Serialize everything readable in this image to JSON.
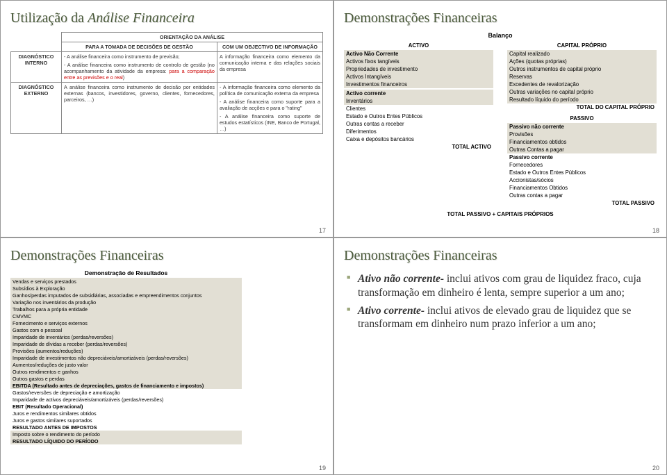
{
  "colors": {
    "title": "#4a5a3a",
    "shade": "#e2dfd4",
    "red": "#c00",
    "bullet": "#9aa57a"
  },
  "slide17": {
    "title_plain": "Utilização da ",
    "title_ital": "Análise Financeira",
    "page": "17",
    "table": {
      "col_header": "ORIENTAÇÃO DA ANÁLISE",
      "h1": "PARA A TOMADA DE DECISÕES DE GESTÃO",
      "h2": "COM UM OBJECTIVO DE INFORMAÇÃO",
      "r1label": "DIAGNÓSTICO INTERNO",
      "r1c1a": "- A análise financeira como instrumento de previsão;",
      "r1c1b_pre": "- A análise financeira como instrumento de controlo de gestão (no acompanhamento da atividade da empresa: ",
      "r1c1b_red": "para a comparação entre as previsões e o real",
      "r1c1b_post": ")",
      "r1c2": "A informação financeira como elemento da comunicação interna e das relações sociais da empresa",
      "r2label": "DIAGNÓSTICO EXTERNO",
      "r2c1": "A análise financeira como instrumento de decisão por entidades externas (bancos, investidores, governo, clientes, fornecedores, parceiros, …)",
      "r2c2a": "- A informação financeira como elemento da política de comunicação externa da empresa",
      "r2c2b": "- A análise financeira como suporte para a avaliação de acções e para o \"rating\"",
      "r2c2c": "- A análise financeira como suporte de estudos estatísticos (INE, Banco de Portugal, …)"
    }
  },
  "slide18": {
    "title": "Demonstrações Financeiras",
    "page": "18",
    "bal_title": "Balanço",
    "activo_head": "ACTIVO",
    "capital_head": "CAPITAL PRÓPRIO",
    "activo": [
      {
        "t": "Activo Não Corrente",
        "b": true,
        "s": true
      },
      {
        "t": "Activos fixos tangíveis",
        "s": true
      },
      {
        "t": "Propriedades de investimento",
        "s": true
      },
      {
        "t": "Activos Intangíveis",
        "s": true
      },
      {
        "t": "Investimentos financeiros",
        "s": true
      },
      {
        "t": " "
      },
      {
        "t": "Activo corrente",
        "b": true,
        "s": true
      },
      {
        "t": "Inventários",
        "s": true
      },
      {
        "t": "Clientes"
      },
      {
        "t": "Estado e Outros Entes Públicos"
      },
      {
        "t": "Outras contas a receber"
      },
      {
        "t": "Diferimentos"
      },
      {
        "t": "Caixa e depósitos bancários"
      },
      {
        "t": "TOTAL ACTIVO",
        "b": true,
        "r": true
      }
    ],
    "capital": [
      {
        "t": "Capital realizado",
        "s": true
      },
      {
        "t": "Ações (quotas próprias)",
        "s": true
      },
      {
        "t": "Outros instrumentos de capital próprio",
        "s": true
      },
      {
        "t": "Reservas",
        "s": true
      },
      {
        "t": "Excedentes de revalorização",
        "s": true
      },
      {
        "t": "Outras variações no capital próprio",
        "s": true
      },
      {
        "t": "Resultado líquido do período",
        "s": true
      },
      {
        "t": "TOTAL DO CAPITAL PRÓPRIO",
        "b": true,
        "r": true
      }
    ],
    "passivo_head": "PASSIVO",
    "passivo": [
      {
        "t": "Passivo não corrente",
        "b": true,
        "s": true
      },
      {
        "t": "Provisões",
        "s": true
      },
      {
        "t": "Financiamentos obtidos",
        "s": true
      },
      {
        "t": "Outras Contas a pagar",
        "s": true
      },
      {
        "t": "Passivo corrente",
        "b": true
      },
      {
        "t": "Fornecedores"
      },
      {
        "t": "Estado e Outros Entes Públicos"
      },
      {
        "t": "Accionistas/sócios"
      },
      {
        "t": "Financiamentos Obtidos"
      },
      {
        "t": "Outras contas a pagar"
      },
      {
        "t": "TOTAL PASSIVO",
        "b": true,
        "r": true
      }
    ],
    "footer": "TOTAL PASSIVO + CAPITAIS PRÓPRIOS"
  },
  "slide19": {
    "title": "Demonstrações Financeiras",
    "page": "19",
    "dem_title": "Demonstração de Resultados",
    "rows": [
      {
        "t": "Vendas e serviços prestados",
        "s": true
      },
      {
        "t": "Subsídios à Exploração",
        "s": true
      },
      {
        "t": "Ganhos/perdas imputados de subsidiárias, associadas e empreendimentos conjuntos",
        "s": true
      },
      {
        "t": "Variação nos inventários da produção",
        "s": true
      },
      {
        "t": "Trabalhos para a própria entidade",
        "s": true
      },
      {
        "t": "CMVMC",
        "s": true
      },
      {
        "t": "Fornecimento e serviços externos",
        "s": true
      },
      {
        "t": "Gastos com o pessoal",
        "s": true
      },
      {
        "t": "Imparidade de inventários (perdas/reversões)",
        "s": true
      },
      {
        "t": "Imparidade de dívidas a receber (perdas/reversões)",
        "s": true
      },
      {
        "t": "Provisões (aumentos/reduções)",
        "s": true
      },
      {
        "t": "Imparidade de investimentos não depreciáveis/amortizáveis (perdas/reversões)",
        "s": true
      },
      {
        "t": "Aumentos/reduções de justo valor",
        "s": true
      },
      {
        "t": "Outros rendimentos e ganhos",
        "s": true
      },
      {
        "t": "Outros gastos e perdas",
        "s": true
      },
      {
        "t": "EBITDA (Resultado antes de depreciações, gastos de financiamento e impostos)",
        "s": true,
        "b": true
      },
      {
        "t": "Gastos/reversões de depreciação e amortização"
      },
      {
        "t": "Imparidade de activos depreciáveis/amortizáveis (perdas/reversões)"
      },
      {
        "t": "EBIT (Resultado Operacional)",
        "b": true
      },
      {
        "t": "Juros e rendimentos similares obtidos"
      },
      {
        "t": "Juros e gastos similares suportados"
      },
      {
        "t": "RESULTADO ANTES DE IMPOSTOS",
        "b": true
      },
      {
        "t": "Imposto sobre o rendimento do período",
        "s": true
      },
      {
        "t": "RESULTADO LÍQUIDO DO PERÍODO",
        "s": true,
        "b": true
      }
    ]
  },
  "slide20": {
    "title": "Demonstrações Financeiras",
    "page": "20",
    "b1_lead": "Ativo não corrente-",
    "b1_rest": " inclui ativos com grau de liquidez fraco, cuja transformação em dinheiro é lenta, sempre superior a um ano;",
    "b2_lead": "Ativo corrente-",
    "b2_rest": " inclui ativos de elevado grau de liquidez que se transformam em dinheiro num prazo inferior a um ano;"
  }
}
